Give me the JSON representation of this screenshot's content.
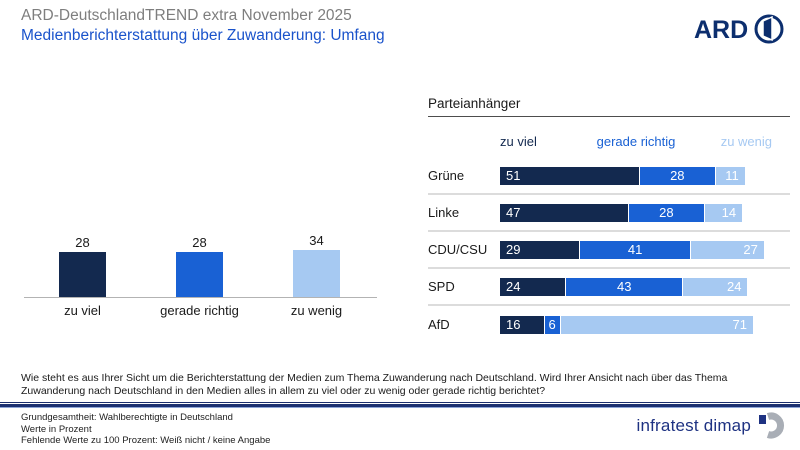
{
  "header": {
    "title": "ARD-DeutschlandTREND extra November 2025",
    "subtitle": "Medienberichterstattung über Zuwanderung: Umfang",
    "ard_logo_text": "ARD"
  },
  "colors": {
    "navy": "#13294f",
    "blue": "#1961d4",
    "light_blue": "#a6c9f2",
    "title_gray": "#7e7e7e",
    "subtitle_blue": "#1a53cb",
    "ard_navy": "#0c2e6e",
    "brand_navy": "#1e3282"
  },
  "chart_data": [
    {
      "type": "bar",
      "orientation": "vertical",
      "categories": [
        "zu viel",
        "gerade richtig",
        "zu wenig"
      ],
      "values": [
        28,
        28,
        34
      ],
      "colors": [
        "#13294f",
        "#1961d4",
        "#a6c9f2"
      ],
      "ylim": [
        0,
        40
      ],
      "grid": false,
      "value_labels": "above bars"
    },
    {
      "type": "bar",
      "orientation": "horizontal-stacked",
      "title": "Parteianhänger",
      "legend": [
        "zu viel",
        "gerade richtig",
        "zu wenig"
      ],
      "legend_position": "top",
      "categories": [
        "Grüne",
        "Linke",
        "CDU/CSU",
        "SPD",
        "AfD"
      ],
      "series": [
        {
          "name": "zu viel",
          "values": [
            51,
            47,
            29,
            24,
            16
          ]
        },
        {
          "name": "gerade richtig",
          "values": [
            28,
            28,
            41,
            43,
            6
          ]
        },
        {
          "name": "zu wenig",
          "values": [
            11,
            14,
            27,
            24,
            71
          ]
        }
      ],
      "colors": [
        "#13294f",
        "#1961d4",
        "#a6c9f2"
      ],
      "xlim": [
        0,
        100
      ]
    }
  ],
  "footer": {
    "question": "Wie steht es aus Ihrer Sicht um die Berichterstattung der Medien zum Thema Zuwanderung nach Deutschland. Wird Ihrer Ansicht nach über das Thema Zuwanderung nach Deutschland in den Medien alles in allem zu viel oder zu wenig oder gerade richtig berichtet?",
    "notes": [
      "Grundgesamtheit: Wahlberechtigte in Deutschland",
      "Werte in Prozent",
      "Fehlende Werte zu 100 Prozent: Weiß nicht / keine Angabe"
    ],
    "brand": "infratest dimap"
  }
}
